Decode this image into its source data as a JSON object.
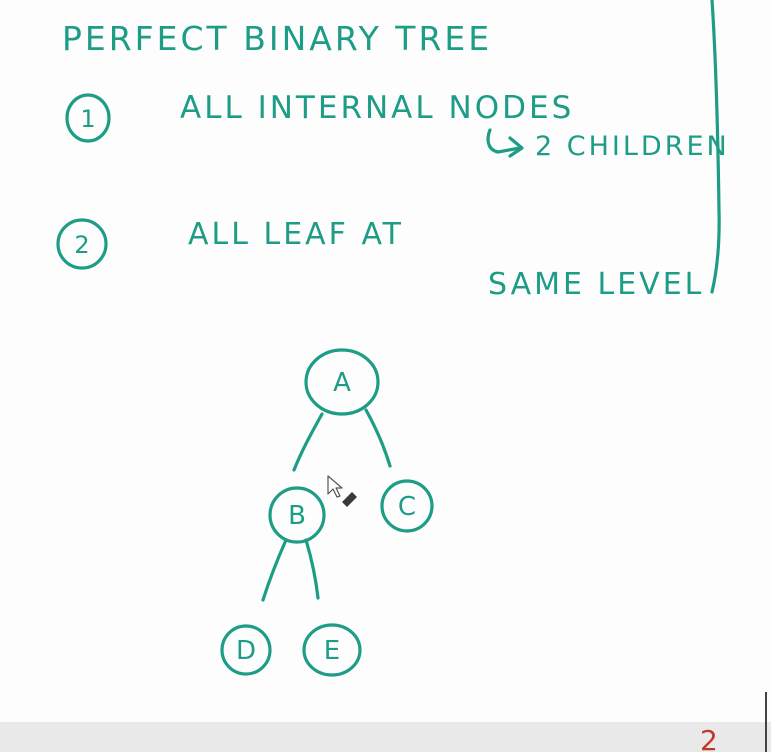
{
  "notes": {
    "title": "PERFECT   BINARY TREE",
    "rule1": {
      "number": "1",
      "line1": "ALL   INTERNAL NODES",
      "line2": "2 CHILDREN"
    },
    "rule2": {
      "number": "2",
      "line1": "ALL    LEAF    AT",
      "line2": "SAME   LEVEL"
    },
    "corner": "2"
  },
  "tree": {
    "nodes": [
      {
        "id": "A",
        "label": "A"
      },
      {
        "id": "B",
        "label": "B"
      },
      {
        "id": "C",
        "label": "C"
      },
      {
        "id": "D",
        "label": "D"
      },
      {
        "id": "E",
        "label": "E"
      }
    ],
    "edges": [
      {
        "from": "A",
        "to": "B"
      },
      {
        "from": "A",
        "to": "C"
      },
      {
        "from": "B",
        "to": "D"
      },
      {
        "from": "B",
        "to": "E"
      }
    ]
  },
  "cursor": {
    "icon": "pointer-icon",
    "tool": "eraser-icon"
  }
}
